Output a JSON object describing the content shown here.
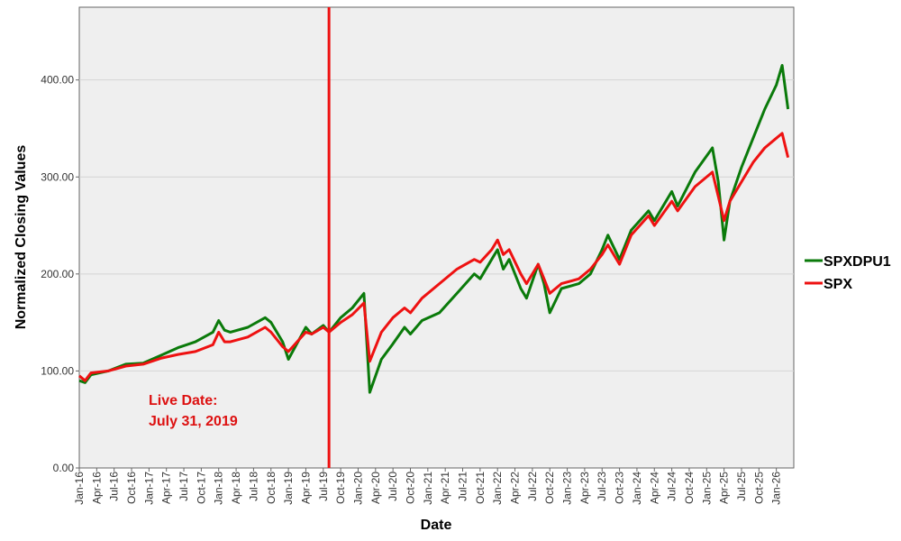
{
  "chart_data": {
    "type": "line",
    "xlabel": "Date",
    "ylabel": "Normalized Closing Values",
    "ylim": [
      0,
      475
    ],
    "xlim": [
      "2016-01",
      "2026-04"
    ],
    "grid": "horizontal",
    "legend_position": "right",
    "y_ticks": [
      "0.00",
      "100.00",
      "200.00",
      "300.00",
      "400.00"
    ],
    "y_tick_values": [
      0,
      100,
      200,
      300,
      400
    ],
    "x_ticks": [
      "Jan-16",
      "Apr-16",
      "Jul-16",
      "Oct-16",
      "Jan-17",
      "Apr-17",
      "Jul-17",
      "Oct-17",
      "Jan-18",
      "Apr-18",
      "Jul-18",
      "Oct-18",
      "Jan-19",
      "Apr-19",
      "Jul-19",
      "Oct-19",
      "Jan-20",
      "Apr-20",
      "Jul-20",
      "Oct-20",
      "Jan-21",
      "Apr-21",
      "Jul-21",
      "Oct-21",
      "Jan-22",
      "Apr-22",
      "Jul-22",
      "Oct-22",
      "Jan-23",
      "Apr-23",
      "Jul-23",
      "Oct-23",
      "Jan-24",
      "Apr-24",
      "Jul-24",
      "Oct-24",
      "Jan-25",
      "Apr-25",
      "Jul-25",
      "Oct-25",
      "Jan-26"
    ],
    "x_tick_dates": [
      "2016-01",
      "2016-04",
      "2016-07",
      "2016-10",
      "2017-01",
      "2017-04",
      "2017-07",
      "2017-10",
      "2018-01",
      "2018-04",
      "2018-07",
      "2018-10",
      "2019-01",
      "2019-04",
      "2019-07",
      "2019-10",
      "2020-01",
      "2020-04",
      "2020-07",
      "2020-10",
      "2021-01",
      "2021-04",
      "2021-07",
      "2021-10",
      "2022-01",
      "2022-04",
      "2022-07",
      "2022-10",
      "2023-01",
      "2023-04",
      "2023-07",
      "2023-10",
      "2024-01",
      "2024-04",
      "2024-07",
      "2024-10",
      "2025-01",
      "2025-04",
      "2025-07",
      "2025-10",
      "2026-01"
    ],
    "live_date": "2019-07-31",
    "annotation": [
      "Live Date:",
      "July 31, 2019"
    ],
    "series": [
      {
        "name": "SPXDPU1",
        "color": "#0a7a0a",
        "x": [
          "2016-01",
          "2016-02",
          "2016-03",
          "2016-06",
          "2016-09",
          "2016-12",
          "2017-03",
          "2017-06",
          "2017-09",
          "2017-12",
          "2018-01",
          "2018-02",
          "2018-03",
          "2018-06",
          "2018-09",
          "2018-10",
          "2018-12",
          "2019-01",
          "2019-04",
          "2019-05",
          "2019-07",
          "2019-08",
          "2019-10",
          "2019-12",
          "2020-02",
          "2020-03",
          "2020-05",
          "2020-07",
          "2020-09",
          "2020-10",
          "2020-12",
          "2021-03",
          "2021-06",
          "2021-09",
          "2021-10",
          "2021-12",
          "2022-01",
          "2022-02",
          "2022-03",
          "2022-05",
          "2022-06",
          "2022-08",
          "2022-09",
          "2022-10",
          "2022-12",
          "2023-03",
          "2023-05",
          "2023-07",
          "2023-08",
          "2023-10",
          "2023-12",
          "2024-03",
          "2024-04",
          "2024-07",
          "2024-08",
          "2024-11",
          "2025-02",
          "2025-03",
          "2025-04",
          "2025-05",
          "2025-07",
          "2025-09",
          "2025-11",
          "2026-01",
          "2026-02",
          "2026-03"
        ],
        "y": [
          90,
          88,
          96,
          100,
          107,
          108,
          116,
          124,
          130,
          140,
          152,
          142,
          140,
          145,
          155,
          150,
          130,
          112,
          145,
          138,
          147,
          140,
          155,
          165,
          180,
          78,
          112,
          128,
          145,
          138,
          152,
          160,
          180,
          200,
          195,
          215,
          225,
          205,
          215,
          185,
          175,
          210,
          190,
          160,
          185,
          190,
          200,
          225,
          240,
          215,
          245,
          265,
          255,
          285,
          270,
          305,
          330,
          295,
          235,
          275,
          310,
          340,
          370,
          395,
          415,
          370
        ]
      },
      {
        "name": "SPX",
        "color": "#ee1111",
        "x": [
          "2016-01",
          "2016-02",
          "2016-03",
          "2016-06",
          "2016-09",
          "2016-12",
          "2017-03",
          "2017-06",
          "2017-09",
          "2017-12",
          "2018-01",
          "2018-02",
          "2018-03",
          "2018-06",
          "2018-09",
          "2018-10",
          "2018-12",
          "2019-01",
          "2019-04",
          "2019-05",
          "2019-07",
          "2019-08",
          "2019-10",
          "2019-12",
          "2020-02",
          "2020-03",
          "2020-05",
          "2020-07",
          "2020-09",
          "2020-10",
          "2020-12",
          "2021-03",
          "2021-06",
          "2021-09",
          "2021-10",
          "2021-12",
          "2022-01",
          "2022-02",
          "2022-03",
          "2022-05",
          "2022-06",
          "2022-08",
          "2022-09",
          "2022-10",
          "2022-12",
          "2023-03",
          "2023-05",
          "2023-07",
          "2023-08",
          "2023-10",
          "2023-12",
          "2024-03",
          "2024-04",
          "2024-07",
          "2024-08",
          "2024-11",
          "2025-02",
          "2025-03",
          "2025-04",
          "2025-05",
          "2025-07",
          "2025-09",
          "2025-11",
          "2026-01",
          "2026-02",
          "2026-03"
        ],
        "y": [
          95,
          90,
          98,
          100,
          105,
          107,
          113,
          117,
          120,
          127,
          140,
          130,
          130,
          135,
          145,
          140,
          125,
          120,
          140,
          138,
          145,
          140,
          150,
          158,
          170,
          110,
          140,
          155,
          165,
          160,
          175,
          190,
          205,
          215,
          212,
          225,
          235,
          220,
          225,
          200,
          190,
          210,
          195,
          180,
          190,
          195,
          205,
          220,
          230,
          210,
          240,
          260,
          250,
          275,
          265,
          290,
          305,
          280,
          255,
          275,
          295,
          315,
          330,
          340,
          345,
          320
        ]
      }
    ]
  }
}
